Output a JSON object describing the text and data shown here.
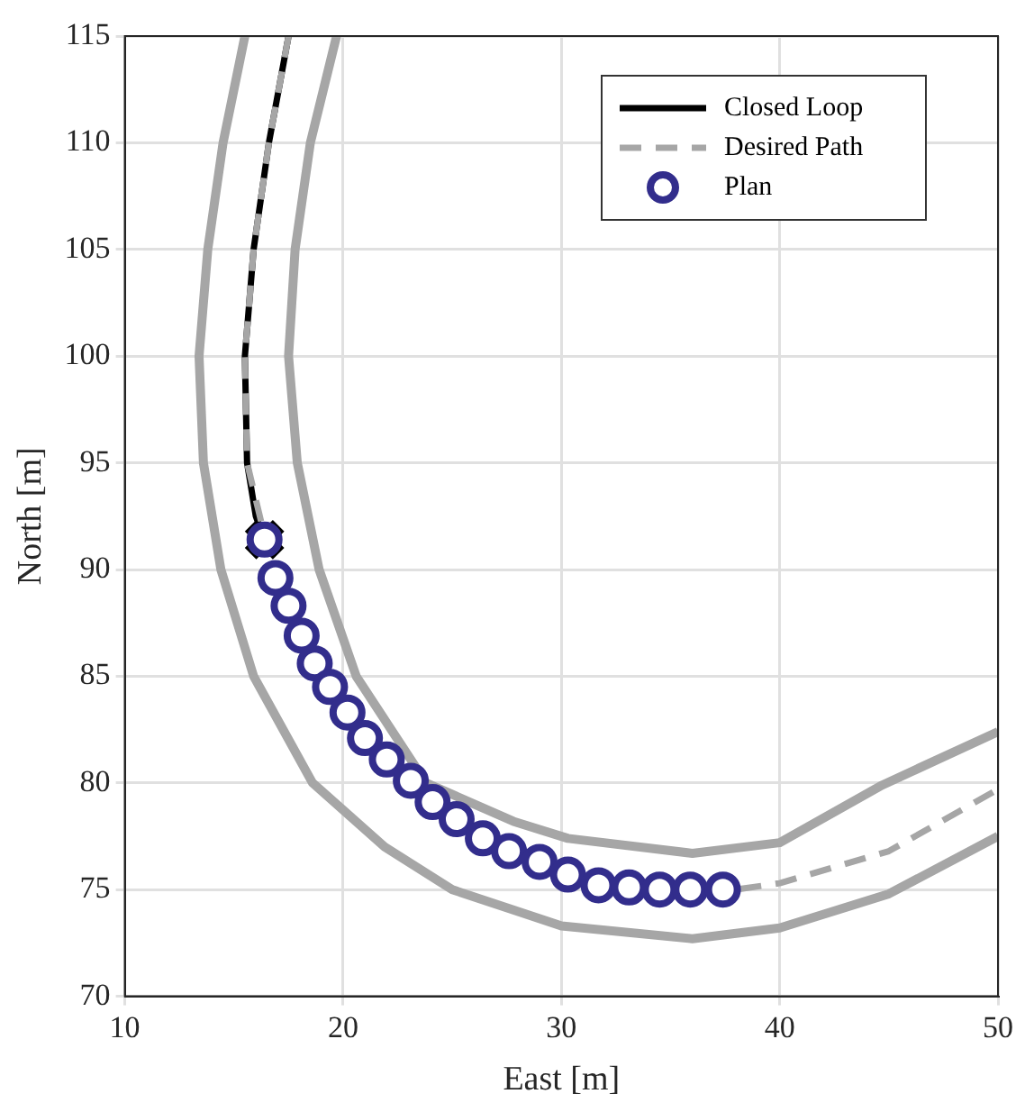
{
  "chart_data": {
    "type": "line",
    "xlabel": "East [m]",
    "ylabel": "North [m]",
    "xlim": [
      10,
      50
    ],
    "xticks": [
      10,
      20,
      30,
      40,
      50
    ],
    "ylim": [
      70,
      115
    ],
    "yticks": [
      70,
      75,
      80,
      85,
      90,
      95,
      100,
      105,
      110,
      115
    ],
    "grid": true,
    "legend": "top right",
    "series": [
      {
        "color": "#a6a6a6",
        "line_style": "solid",
        "x": [
          15.5,
          14.5,
          13.8,
          13.4,
          13.6,
          14.4,
          15.9,
          18.6,
          21.9,
          25,
          30,
          36,
          40,
          45,
          50
        ],
        "values": [
          115,
          110,
          105,
          100,
          95,
          90,
          85,
          80,
          77,
          75,
          73.3,
          72.7,
          73.2,
          74.8,
          77.5
        ]
      },
      {
        "color": "#a6a6a6",
        "line_style": "solid",
        "x": [
          19.7,
          18.5,
          17.8,
          17.5,
          17.9,
          18.9,
          20.6,
          23.8,
          27.8,
          30.3,
          36,
          40,
          44.7,
          50
        ],
        "values": [
          115,
          110,
          105,
          100,
          95,
          90,
          85,
          80,
          78.2,
          77.4,
          76.7,
          77.2,
          79.9,
          82.4
        ]
      },
      {
        "name": "Closed Loop",
        "color": "#000000",
        "line_style": "solid",
        "x": [
          17.5,
          16.6,
          15.9,
          15.5,
          15.6,
          16.0,
          16.4
        ],
        "values": [
          115,
          110,
          105,
          100,
          95,
          92.5,
          91.4
        ]
      },
      {
        "name": "Desired Path",
        "color": "#a6a6a6",
        "line_style": "dashed",
        "x": [
          17.5,
          16.6,
          15.9,
          15.5,
          15.6,
          16.3,
          16.9,
          18.1,
          19.4,
          21,
          23.1,
          25.2,
          27.6,
          30.3,
          33.1,
          35.9,
          38,
          40,
          45,
          50
        ],
        "values": [
          115,
          110,
          105,
          100,
          95,
          92,
          89.6,
          86.9,
          84.5,
          82.1,
          80.1,
          78.3,
          76.8,
          75.7,
          75.1,
          74.9,
          75,
          75.3,
          76.8,
          79.7
        ]
      },
      {
        "type": "scatter",
        "color": "#000000",
        "marker": "cross",
        "x": [
          16.4
        ],
        "values": [
          91.4
        ]
      },
      {
        "type": "scatter",
        "name": "Plan",
        "color": "#322d8c",
        "marker": "circle",
        "x": [
          16.4,
          16.9,
          17.5,
          18.1,
          18.7,
          19.4,
          20.2,
          21.0,
          22.0,
          23.1,
          24.1,
          25.2,
          26.4,
          27.6,
          29.0,
          30.3,
          31.7,
          33.1,
          34.5,
          35.9,
          37.4
        ],
        "values": [
          91.4,
          89.6,
          88.3,
          86.9,
          85.6,
          84.5,
          83.3,
          82.1,
          81.1,
          80.1,
          79.1,
          78.3,
          77.4,
          76.8,
          76.3,
          75.7,
          75.2,
          75.1,
          75.0,
          75.0,
          75.0
        ]
      }
    ]
  }
}
